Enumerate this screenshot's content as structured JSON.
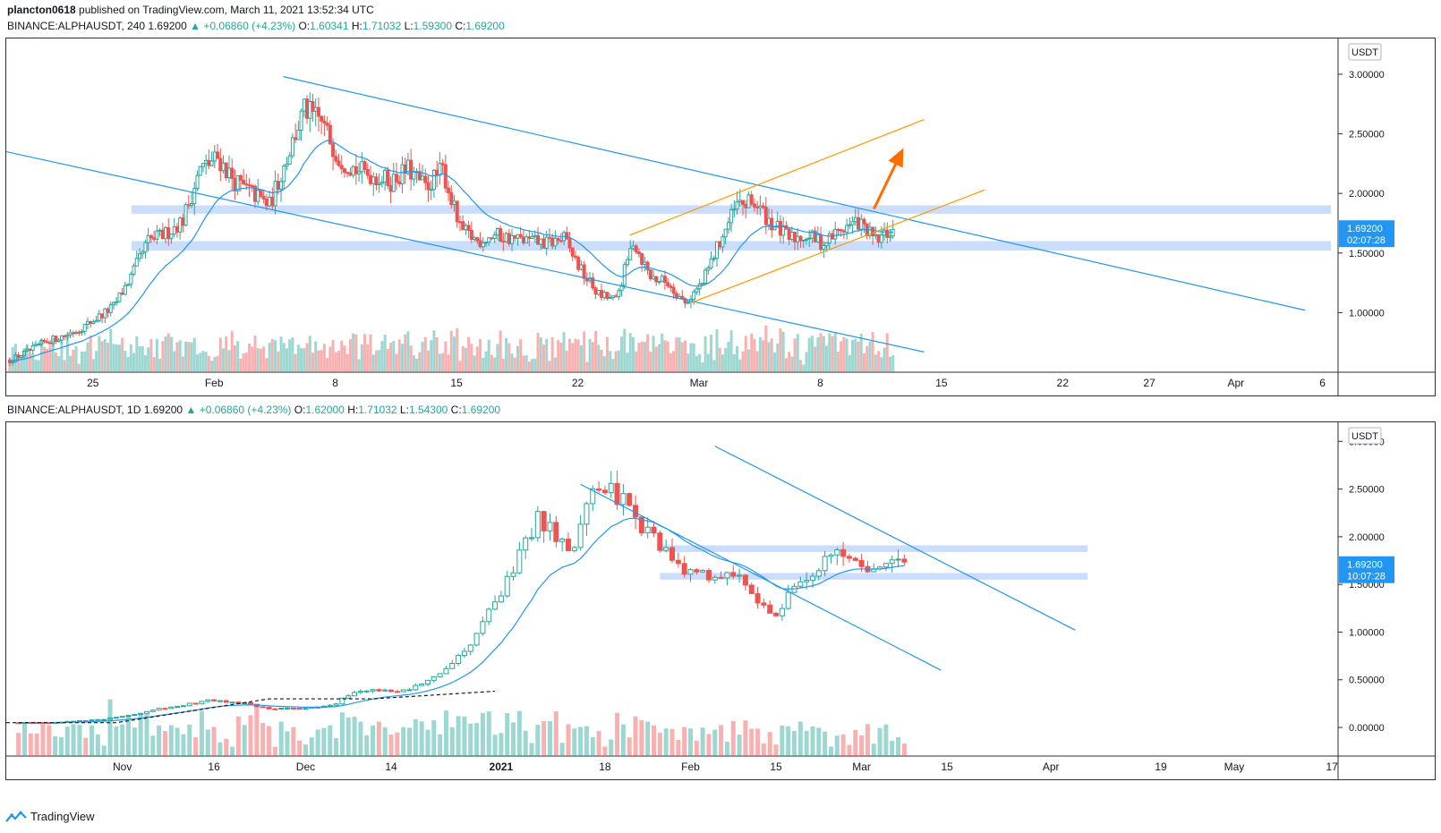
{
  "publisher": {
    "user": "plancton0618",
    "text": " published on TradingView.com, March 11, 2021 13:52:34 UTC"
  },
  "brand": {
    "label": "TradingView",
    "icon": "tradingview-logo-icon"
  },
  "colors": {
    "up": "#26a69a",
    "down": "#ef5350",
    "trend": "#2196f3",
    "channel": "#ff9800",
    "zone": "#aecbfa",
    "ma": "#2196f3",
    "price_tag": "#2196f3"
  },
  "charts": [
    {
      "header": {
        "symbol": "BINANCE:ALPHAUSDT, 240",
        "price": "1.69200",
        "change": "+0.06860 (+4.23%)",
        "o_label": "O:",
        "o": "1.60341",
        "h_label": "H:",
        "h": "1.71032",
        "l_label": "L:",
        "l": "1.59300",
        "c_label": "C:",
        "c": "1.69200"
      },
      "currency_label": "USDT",
      "price_tag": {
        "price": "1.69200",
        "countdown": "02:07:28"
      }
    },
    {
      "header": {
        "symbol": "BINANCE:ALPHAUSDT, 1D",
        "price": "1.69200",
        "change": "+0.06860 (+4.23%)",
        "o_label": "O:",
        "o": "1.62000",
        "h_label": "H:",
        "h": "1.71032",
        "l_label": "L:",
        "l": "1.54300",
        "c_label": "C:",
        "c": "1.69200"
      },
      "currency_label": "USDT",
      "price_tag": {
        "price": "1.69200",
        "countdown": "10:07:28"
      }
    }
  ],
  "chart_data": [
    {
      "type": "candlestick",
      "timeframe": "240",
      "y_ticks": [
        "3.00000",
        "2.50000",
        "2.00000",
        "1.50000",
        "1.00000"
      ],
      "y_tick_values": [
        3.0,
        2.5,
        2.0,
        1.5,
        1.0
      ],
      "ylim": [
        0.5,
        3.3
      ],
      "x_ticks": [
        {
          "label": "25",
          "t": 5
        },
        {
          "label": "Feb",
          "t": 12
        },
        {
          "label": "8",
          "t": 19
        },
        {
          "label": "15",
          "t": 26
        },
        {
          "label": "22",
          "t": 33
        },
        {
          "label": "Mar",
          "t": 40
        },
        {
          "label": "8",
          "t": 47
        },
        {
          "label": "15",
          "t": 54
        },
        {
          "label": "22",
          "t": 61
        },
        {
          "label": "27",
          "t": 66
        },
        {
          "label": "Apr",
          "t": 71
        },
        {
          "label": "6",
          "t": 76
        }
      ],
      "xlim": [
        0,
        76.9
      ],
      "daily_closes": [
        0.6,
        0.67,
        0.75,
        0.8,
        0.86,
        0.95,
        1.05,
        1.3,
        1.6,
        1.66,
        1.78,
        2.2,
        2.3,
        2.1,
        2.0,
        1.9,
        2.3,
        2.7,
        2.6,
        2.3,
        2.2,
        2.15,
        2.1,
        2.2,
        2.05,
        2.2,
        1.7,
        1.6,
        1.65,
        1.62,
        1.6,
        1.58,
        1.62,
        1.35,
        1.15,
        1.1,
        1.6,
        1.3,
        1.25,
        1.08,
        1.25,
        1.6,
        1.9,
        1.92,
        1.75,
        1.62,
        1.65,
        1.58,
        1.7,
        1.76,
        1.6,
        1.69
      ],
      "support_zones": [
        [
          1.83,
          1.9
        ],
        [
          1.52,
          1.6
        ]
      ],
      "trend_lines": [
        {
          "role": "descending-channel-top",
          "from": [
            16,
            2.98
          ],
          "to": [
            75,
            1.02
          ]
        },
        {
          "role": "descending-channel-bottom",
          "from": [
            0,
            2.35
          ],
          "to": [
            53,
            0.67
          ]
        }
      ],
      "ascending_channel": [
        {
          "from": [
            39.5,
            1.08
          ],
          "to": [
            56.5,
            2.03
          ]
        },
        {
          "from": [
            36,
            1.65
          ],
          "to": [
            53,
            2.62
          ]
        }
      ],
      "arrow": {
        "from": [
          50.1,
          1.87
        ],
        "to": [
          51.8,
          2.38
        ]
      },
      "last_price": 1.692
    },
    {
      "type": "candlestick",
      "timeframe": "1D",
      "y_ticks": [
        "3.00000",
        "2.50000",
        "2.00000",
        "1.50000",
        "1.00000",
        "0.50000",
        "0.00000"
      ],
      "y_tick_values": [
        3.0,
        2.5,
        2.0,
        1.5,
        1.0,
        0.5,
        0.0
      ],
      "ylim": [
        -0.3,
        3.2
      ],
      "x_ticks": [
        {
          "label": "Nov",
          "t": 19
        },
        {
          "label": "16",
          "t": 34
        },
        {
          "label": "Dec",
          "t": 49
        },
        {
          "label": "14",
          "t": 63
        },
        {
          "label": "2021",
          "t": 81
        },
        {
          "label": "18",
          "t": 98
        },
        {
          "label": "Feb",
          "t": 112
        },
        {
          "label": "15",
          "t": 126
        },
        {
          "label": "Mar",
          "t": 140
        },
        {
          "label": "15",
          "t": 154
        },
        {
          "label": "Apr",
          "t": 171
        },
        {
          "label": "19",
          "t": 189
        },
        {
          "label": "May",
          "t": 201
        },
        {
          "label": "17",
          "t": 217
        }
      ],
      "xlim": [
        0,
        218
      ],
      "daily_closes": [
        0.05,
        0.05,
        0.05,
        0.06,
        0.07,
        0.08,
        0.1,
        0.13,
        0.16,
        0.2,
        0.22,
        0.25,
        0.28,
        0.27,
        0.26,
        0.22,
        0.2,
        0.2,
        0.2,
        0.22,
        0.24,
        0.36,
        0.4,
        0.38,
        0.36,
        0.42,
        0.48,
        0.6,
        0.75,
        0.95,
        1.3,
        1.55,
        2.0,
        2.2,
        2.0,
        1.85,
        2.3,
        2.6,
        2.4,
        2.2,
        2.0,
        1.8,
        1.65,
        1.6,
        1.5,
        1.58,
        1.55,
        1.3,
        1.2,
        1.55,
        1.6,
        1.8,
        1.85,
        1.75,
        1.65,
        1.7,
        1.69
      ],
      "support_zones": [
        [
          1.84,
          1.91
        ],
        [
          1.55,
          1.62
        ]
      ],
      "trend_lines": [
        {
          "role": "channel-top",
          "from": [
            116,
            2.95
          ],
          "to": [
            175,
            1.02
          ]
        },
        {
          "role": "channel-bottom",
          "from": [
            94,
            2.55
          ],
          "to": [
            153,
            0.6
          ]
        }
      ],
      "last_price": 1.692
    }
  ]
}
